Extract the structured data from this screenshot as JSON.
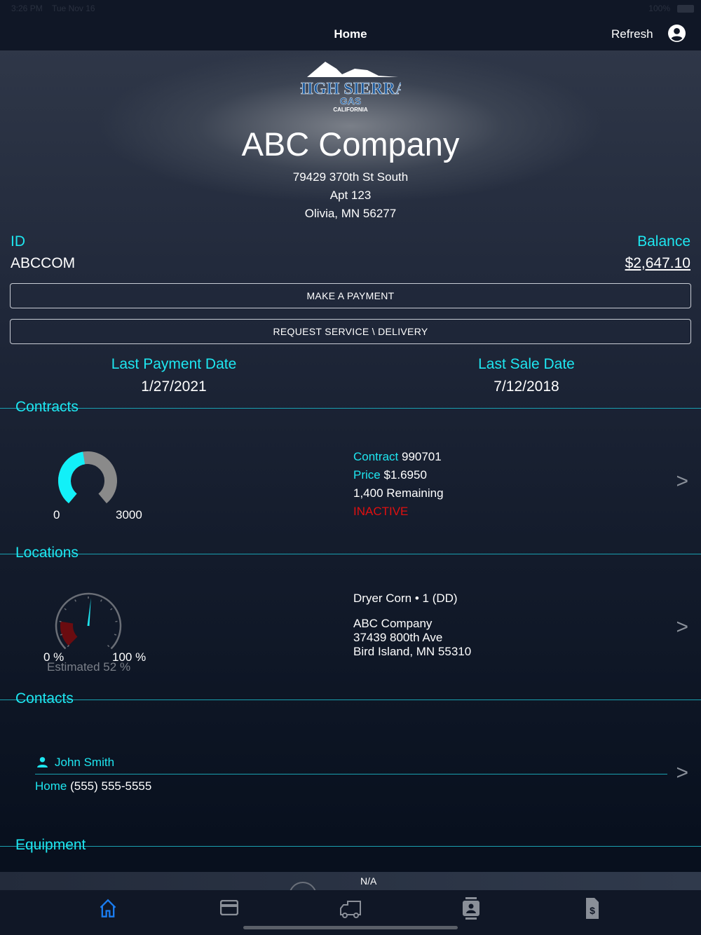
{
  "status_bar": {
    "time": "3:26 PM",
    "date": "Tue Nov 16",
    "battery": "100%"
  },
  "nav": {
    "title": "Home",
    "refresh_label": "Refresh",
    "profile_icon": "person-circle-icon"
  },
  "logo": {
    "text": "HIGH SIERRA GAS CALIFORNIA"
  },
  "company": {
    "name": "ABC Company",
    "address1": "79429 370th St South",
    "address2": "Apt 123",
    "address3": "Olivia, MN 56277"
  },
  "account": {
    "id_label": "ID",
    "id_value": "ABCCOM",
    "balance_label": "Balance",
    "balance_value": "$2,647.10"
  },
  "buttons": {
    "payment": "MAKE A PAYMENT",
    "service": "REQUEST SERVICE \\ DELIVERY"
  },
  "dates": {
    "last_payment_label": "Last Payment Date",
    "last_payment_value": "1/27/2021",
    "last_sale_label": "Last Sale Date",
    "last_sale_value": "7/12/2018"
  },
  "contracts": {
    "title": "Contracts",
    "gauge_min": "0",
    "gauge_max": "3000",
    "gauge_value": 1400,
    "contract_label": "Contract",
    "contract_value": "990701",
    "price_label": "Price",
    "price_value": "$1.6950",
    "remaining": "1,400 Remaining",
    "status": "INACTIVE"
  },
  "locations": {
    "title": "Locations",
    "gauge_min": "0 %",
    "gauge_max": "100 %",
    "estimated": "Estimated 52 %",
    "level_percent": 52,
    "low_zone_percent": 20,
    "tank": "Dryer Corn • 1 (DD)",
    "name": "ABC Company",
    "address1": "37439 800th Ave",
    "address2": "Bird Island, MN  55310"
  },
  "contacts": {
    "title": "Contacts",
    "name": "John Smith",
    "phone_label": "Home",
    "phone_value": "(555) 555-5555"
  },
  "equipment": {
    "title": "Equipment",
    "partial_text": "N/A"
  },
  "tabs": [
    {
      "name": "home",
      "active": true
    },
    {
      "name": "payments"
    },
    {
      "name": "delivery"
    },
    {
      "name": "contacts"
    },
    {
      "name": "invoices"
    }
  ],
  "colors": {
    "accent": "#1ee6f0",
    "active_tab": "#1a7cf0",
    "inactive": "#e01010",
    "low_zone": "#6a0c10"
  },
  "chevron": ">"
}
